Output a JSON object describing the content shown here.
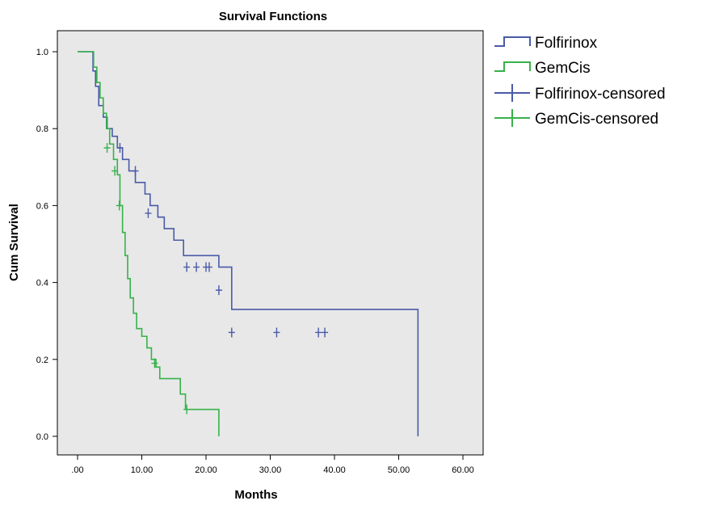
{
  "chart_data": {
    "type": "line",
    "title": "Survival Functions",
    "xlabel": "Months",
    "ylabel": "Cum Survival",
    "xlim": [
      0,
      60
    ],
    "ylim": [
      0,
      1
    ],
    "x_ticks": [
      0,
      10,
      20,
      30,
      40,
      50,
      60
    ],
    "x_tick_labels": [
      ".00",
      "10.00",
      "20.00",
      "30.00",
      "40.00",
      "50.00",
      "60.00"
    ],
    "y_ticks": [
      0,
      0.2,
      0.4,
      0.6,
      0.8,
      1.0
    ],
    "y_tick_labels": [
      "0.0",
      "0.2",
      "0.4",
      "0.6",
      "0.8",
      "1.0"
    ],
    "grid": false,
    "legend_position": "right",
    "colors": {
      "Folfirinox": "#4a5aa8",
      "GemCis": "#36b24a",
      "plot_background": "#e8e8e8"
    },
    "legend": [
      "Folfirinox",
      "GemCis",
      "Folfirinox-censored",
      "GemCis-censored"
    ],
    "series": [
      {
        "name": "Folfirinox",
        "step": true,
        "x": [
          0,
          2.0,
          2.4,
          2.8,
          3.3,
          4.0,
          4.6,
          5.4,
          6.2,
          7.0,
          8.0,
          9.0,
          10.5,
          11.3,
          12.5,
          13.5,
          15.0,
          16.5,
          22.0,
          24.0,
          53.0
        ],
        "y": [
          1.0,
          1.0,
          0.95,
          0.91,
          0.86,
          0.83,
          0.8,
          0.78,
          0.75,
          0.72,
          0.69,
          0.66,
          0.63,
          0.6,
          0.57,
          0.54,
          0.51,
          0.47,
          0.44,
          0.33,
          0.27
        ],
        "end": [
          53.0,
          0.0
        ]
      },
      {
        "name": "GemCis",
        "step": true,
        "x": [
          0,
          2.0,
          2.5,
          3.0,
          3.5,
          4.0,
          4.5,
          5.0,
          5.6,
          6.2,
          6.6,
          7.0,
          7.4,
          7.8,
          8.2,
          8.7,
          9.2,
          10.0,
          10.8,
          11.5,
          12.2,
          12.8,
          16.0,
          16.8,
          22.0
        ],
        "y": [
          1.0,
          1.0,
          0.96,
          0.92,
          0.88,
          0.84,
          0.8,
          0.76,
          0.72,
          0.68,
          0.6,
          0.53,
          0.47,
          0.41,
          0.36,
          0.32,
          0.28,
          0.26,
          0.23,
          0.2,
          0.18,
          0.15,
          0.11,
          0.07,
          0.07
        ],
        "end": [
          22.0,
          0.0
        ]
      },
      {
        "name": "Folfirinox-censored",
        "x": [
          6.6,
          9.0,
          11.0,
          17.0,
          18.5,
          20.0,
          20.5,
          22.0,
          24.0,
          31.0,
          37.5,
          38.5
        ],
        "y": [
          0.75,
          0.69,
          0.58,
          0.44,
          0.44,
          0.44,
          0.44,
          0.38,
          0.27,
          0.27,
          0.27,
          0.27
        ]
      },
      {
        "name": "GemCis-censored",
        "x": [
          4.6,
          5.8,
          6.5,
          12.0,
          17.0
        ],
        "y": [
          0.75,
          0.69,
          0.6,
          0.19,
          0.07
        ]
      }
    ]
  }
}
